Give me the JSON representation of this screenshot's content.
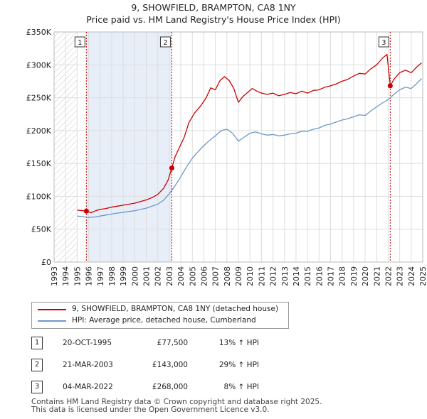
{
  "chart_data": {
    "type": "line",
    "title": "9, SHOWFIELD, BRAMPTON, CA8 1NY",
    "subtitle": "Price paid vs. HM Land Registry's House Price Index (HPI)",
    "xlim": [
      1993.0,
      2025.0
    ],
    "ylim": [
      0,
      350000
    ],
    "x_ticks": [
      "1993",
      "1994",
      "1995",
      "1996",
      "1997",
      "1998",
      "1999",
      "2000",
      "2001",
      "2002",
      "2003",
      "2004",
      "2005",
      "2006",
      "2007",
      "2008",
      "2009",
      "2010",
      "2011",
      "2012",
      "2013",
      "2014",
      "2015",
      "2016",
      "2017",
      "2018",
      "2019",
      "2020",
      "2021",
      "2022",
      "2023",
      "2024",
      "2025"
    ],
    "y_ticks": [
      {
        "value": 0,
        "label": "£0"
      },
      {
        "value": 50000,
        "label": "£50K"
      },
      {
        "value": 100000,
        "label": "£100K"
      },
      {
        "value": 150000,
        "label": "£150K"
      },
      {
        "value": 200000,
        "label": "£200K"
      },
      {
        "value": 250000,
        "label": "£250K"
      },
      {
        "value": 300000,
        "label": "£300K"
      },
      {
        "value": 350000,
        "label": "£350K"
      }
    ],
    "hatched_before": 1995.0,
    "shaded_between": [
      1995.8,
      2003.22
    ],
    "colors": {
      "price": "#cc0000",
      "hpi": "#6a97c9",
      "shade": "#e8eef8",
      "marker": "#cc0000"
    },
    "series": [
      {
        "name": "9, SHOWFIELD, BRAMPTON, CA8 1NY (detached house)",
        "color": "#cc0000",
        "points": [
          [
            1995.0,
            79000
          ],
          [
            1995.3,
            78500
          ],
          [
            1995.8,
            77500
          ],
          [
            1996.2,
            75000
          ],
          [
            1996.6,
            78000
          ],
          [
            1997.0,
            80000
          ],
          [
            1997.5,
            81500
          ],
          [
            1998.0,
            83500
          ],
          [
            1998.5,
            85000
          ],
          [
            1999.0,
            86500
          ],
          [
            1999.5,
            88000
          ],
          [
            2000.0,
            89500
          ],
          [
            2000.5,
            92000
          ],
          [
            2001.0,
            94500
          ],
          [
            2001.5,
            98000
          ],
          [
            2002.0,
            103000
          ],
          [
            2002.5,
            112000
          ],
          [
            2002.9,
            125000
          ],
          [
            2003.22,
            143000
          ],
          [
            2003.5,
            160000
          ],
          [
            2003.9,
            175000
          ],
          [
            2004.3,
            190000
          ],
          [
            2004.7,
            212000
          ],
          [
            2005.2,
            227000
          ],
          [
            2005.7,
            237000
          ],
          [
            2006.2,
            250000
          ],
          [
            2006.6,
            265000
          ],
          [
            2007.0,
            262000
          ],
          [
            2007.4,
            276000
          ],
          [
            2007.8,
            282000
          ],
          [
            2008.2,
            276000
          ],
          [
            2008.6,
            264000
          ],
          [
            2009.0,
            243000
          ],
          [
            2009.4,
            252000
          ],
          [
            2009.8,
            258000
          ],
          [
            2010.2,
            264000
          ],
          [
            2010.6,
            260000
          ],
          [
            2011.0,
            257000
          ],
          [
            2011.5,
            255000
          ],
          [
            2012.0,
            257000
          ],
          [
            2012.5,
            253000
          ],
          [
            2013.0,
            255000
          ],
          [
            2013.5,
            258000
          ],
          [
            2014.0,
            256000
          ],
          [
            2014.5,
            260000
          ],
          [
            2015.0,
            257000
          ],
          [
            2015.5,
            261000
          ],
          [
            2016.0,
            262000
          ],
          [
            2016.5,
            266000
          ],
          [
            2017.0,
            268000
          ],
          [
            2017.5,
            271000
          ],
          [
            2018.0,
            275000
          ],
          [
            2018.5,
            278000
          ],
          [
            2019.0,
            283000
          ],
          [
            2019.5,
            287000
          ],
          [
            2020.0,
            286000
          ],
          [
            2020.5,
            294000
          ],
          [
            2021.0,
            300000
          ],
          [
            2021.5,
            310000
          ],
          [
            2021.9,
            316000
          ],
          [
            2022.18,
            268000
          ],
          [
            2022.5,
            278000
          ],
          [
            2023.0,
            288000
          ],
          [
            2023.5,
            292000
          ],
          [
            2024.0,
            288000
          ],
          [
            2024.5,
            297000
          ],
          [
            2024.9,
            303000
          ]
        ]
      },
      {
        "name": "HPI: Average price, detached house, Cumberland",
        "color": "#6a97c9",
        "points": [
          [
            1995.0,
            70000
          ],
          [
            1995.5,
            69000
          ],
          [
            1996.0,
            68000
          ],
          [
            1996.5,
            68500
          ],
          [
            1997.0,
            70000
          ],
          [
            1997.5,
            71500
          ],
          [
            1998.0,
            73000
          ],
          [
            1998.5,
            74500
          ],
          [
            1999.0,
            75500
          ],
          [
            1999.5,
            77000
          ],
          [
            2000.0,
            78000
          ],
          [
            2000.5,
            80000
          ],
          [
            2001.0,
            82000
          ],
          [
            2001.5,
            85000
          ],
          [
            2002.0,
            88000
          ],
          [
            2002.5,
            94000
          ],
          [
            2003.0,
            104000
          ],
          [
            2003.5,
            116000
          ],
          [
            2004.0,
            130000
          ],
          [
            2004.5,
            145000
          ],
          [
            2005.0,
            158000
          ],
          [
            2005.5,
            168000
          ],
          [
            2006.0,
            177000
          ],
          [
            2006.5,
            185000
          ],
          [
            2007.0,
            192000
          ],
          [
            2007.5,
            200000
          ],
          [
            2008.0,
            202000
          ],
          [
            2008.5,
            196000
          ],
          [
            2009.0,
            184000
          ],
          [
            2009.5,
            190000
          ],
          [
            2010.0,
            196000
          ],
          [
            2010.5,
            198000
          ],
          [
            2011.0,
            195000
          ],
          [
            2011.5,
            193000
          ],
          [
            2012.0,
            194000
          ],
          [
            2012.5,
            192000
          ],
          [
            2013.0,
            193000
          ],
          [
            2013.5,
            195000
          ],
          [
            2014.0,
            196000
          ],
          [
            2014.5,
            199000
          ],
          [
            2015.0,
            199000
          ],
          [
            2015.5,
            202000
          ],
          [
            2016.0,
            204000
          ],
          [
            2016.5,
            208000
          ],
          [
            2017.0,
            210000
          ],
          [
            2017.5,
            213000
          ],
          [
            2018.0,
            216000
          ],
          [
            2018.5,
            218000
          ],
          [
            2019.0,
            221000
          ],
          [
            2019.5,
            224000
          ],
          [
            2020.0,
            223000
          ],
          [
            2020.5,
            230000
          ],
          [
            2021.0,
            236000
          ],
          [
            2021.5,
            242000
          ],
          [
            2022.0,
            247000
          ],
          [
            2022.5,
            255000
          ],
          [
            2023.0,
            262000
          ],
          [
            2023.5,
            266000
          ],
          [
            2024.0,
            264000
          ],
          [
            2024.5,
            272000
          ],
          [
            2024.9,
            279000
          ]
        ]
      }
    ],
    "sales": [
      {
        "id": "1",
        "x": 1995.8,
        "price": 77500
      },
      {
        "id": "2",
        "x": 2003.22,
        "price": 143000
      },
      {
        "id": "3",
        "x": 2022.18,
        "price": 268000
      }
    ]
  },
  "legend": {
    "price_label": "9, SHOWFIELD, BRAMPTON, CA8 1NY (detached house)",
    "hpi_label": "HPI: Average price, detached house, Cumberland"
  },
  "transactions": [
    {
      "num": "1",
      "date": "20-OCT-1995",
      "price": "£77,500",
      "hpi": "13% ↑ HPI"
    },
    {
      "num": "2",
      "date": "21-MAR-2003",
      "price": "£143,000",
      "hpi": "29% ↑ HPI"
    },
    {
      "num": "3",
      "date": "04-MAR-2022",
      "price": "£268,000",
      "hpi": "8% ↑ HPI"
    }
  ],
  "footer": {
    "line1": "Contains HM Land Registry data © Crown copyright and database right 2025.",
    "line2": "This data is licensed under the Open Government Licence v3.0."
  }
}
